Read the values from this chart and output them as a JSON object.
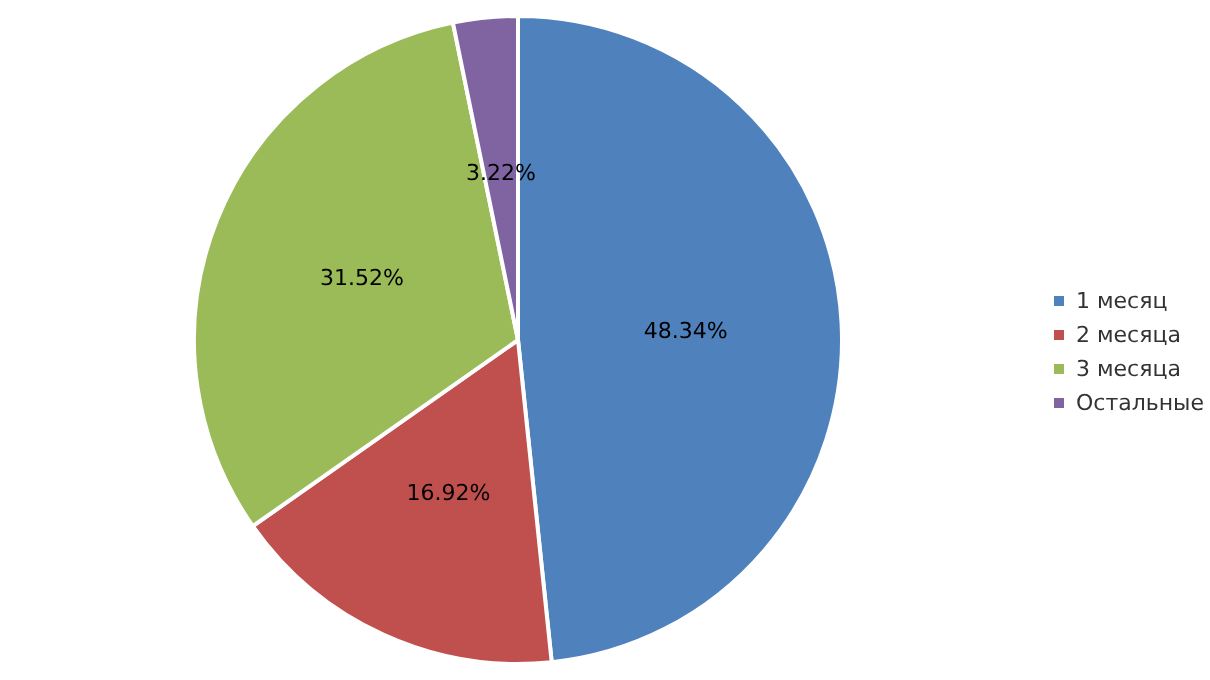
{
  "chart_data": {
    "type": "pie",
    "categories": [
      "1 месяц",
      "2 месяца",
      "3 месяца",
      "Остальные"
    ],
    "values": [
      48.34,
      16.92,
      31.52,
      3.22
    ],
    "value_labels": [
      "48.34%",
      "16.92%",
      "31.52%",
      "3.22%"
    ],
    "colors": [
      "#4f81bd",
      "#c0504d",
      "#9bbb59",
      "#8064a2"
    ],
    "legend": "right"
  }
}
